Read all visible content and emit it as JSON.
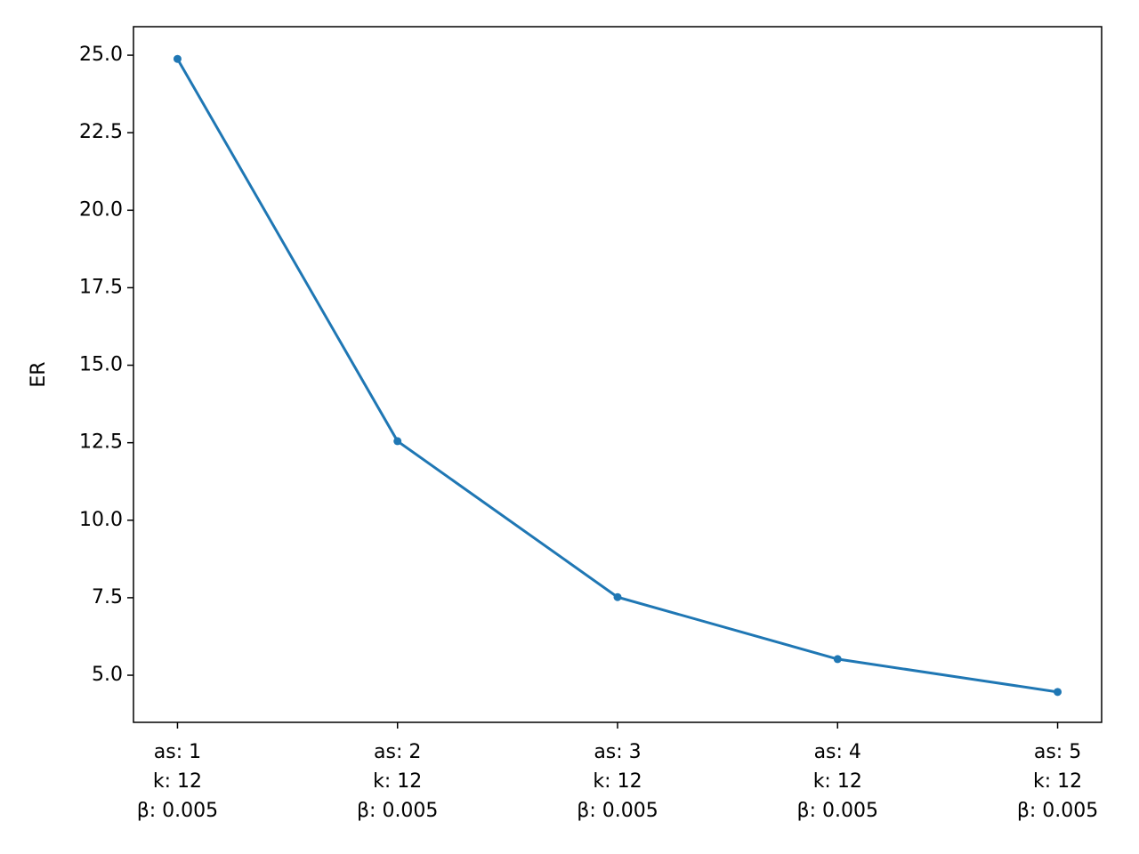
{
  "chart_data": {
    "type": "line",
    "y_label": "ER",
    "categories": [
      [
        "as: 1",
        "k: 12",
        "β: 0.005"
      ],
      [
        "as: 2",
        "k: 12",
        "β: 0.005"
      ],
      [
        "as: 3",
        "k: 12",
        "β: 0.005"
      ],
      [
        "as: 4",
        "k: 12",
        "β: 0.005"
      ],
      [
        "as: 5",
        "k: 12",
        "β: 0.005"
      ]
    ],
    "series": [
      {
        "color": "#1f77b4",
        "values": [
          24.88,
          12.55,
          7.52,
          5.52,
          4.46
        ]
      }
    ],
    "ylim": [
      3.48,
      25.92
    ],
    "yticks": [
      {
        "value": 5,
        "label": "5.0"
      },
      {
        "value": 7.5,
        "label": "7.5"
      },
      {
        "value": 10,
        "label": "10.0"
      },
      {
        "value": 12.5,
        "label": "12.5"
      },
      {
        "value": 15,
        "label": "15.0"
      },
      {
        "value": 17.5,
        "label": "17.5"
      },
      {
        "value": 20,
        "label": "20.0"
      },
      {
        "value": 22.5,
        "label": "22.5"
      },
      {
        "value": 25,
        "label": "25.0"
      }
    ],
    "grid": false
  }
}
